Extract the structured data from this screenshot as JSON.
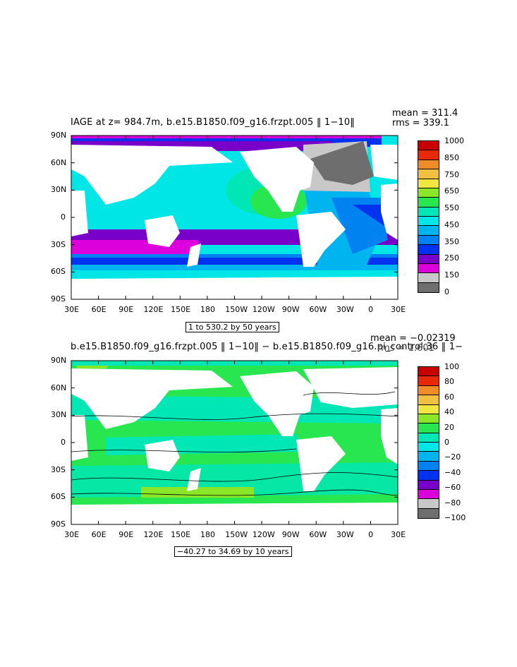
{
  "panels": [
    {
      "title": "IAGE at z= 984.7m, b.e15.B1850.f09_g16.frzpt.005 ‖ 1−10‖",
      "stats": [
        "mean = 311.4",
        "rms = 339.1"
      ],
      "range_label": "1 to 530.2 by 50 years",
      "colorbar": {
        "labels": [
          "1000",
          "850",
          "750",
          "650",
          "550",
          "450",
          "350",
          "250",
          "150",
          "0"
        ],
        "colors": [
          "#c80000",
          "#e8280a",
          "#f08c28",
          "#f0c040",
          "#f0e640",
          "#8ce628",
          "#28e650",
          "#00e6b4",
          "#00e6e6",
          "#00b4f0",
          "#0082f0",
          "#0032f0",
          "#7800c8",
          "#dc00dc",
          "#c8c8c8",
          "#6e6e6e"
        ]
      }
    },
    {
      "title": "b.e15.B1850.f09_g16.frzpt.005 ‖ 1−10‖ − b.e15.B1850.f09_g16.pi_control.36 ‖ 1−",
      "stats": [
        "mean = −0.02319",
        "rms = 1.601"
      ],
      "range_label": "−40.27 to 34.69 by 10 years",
      "colorbar": {
        "labels": [
          "100",
          "80",
          "60",
          "40",
          "20",
          "0",
          "−20",
          "−40",
          "−60",
          "−80",
          "−100"
        ],
        "colors": [
          "#c80000",
          "#e8280a",
          "#f08c28",
          "#f0c040",
          "#f0e640",
          "#8ce628",
          "#28e650",
          "#00e6b4",
          "#00e6e6",
          "#00b4f0",
          "#0082f0",
          "#0032f0",
          "#7800c8",
          "#dc00dc",
          "#c8c8c8",
          "#6e6e6e"
        ]
      }
    }
  ],
  "axes": {
    "xticks": [
      "30E",
      "60E",
      "90E",
      "120E",
      "150E",
      "180",
      "150W",
      "120W",
      "90W",
      "60W",
      "30W",
      "0",
      "30E"
    ],
    "yticks": [
      "90N",
      "60N",
      "30N",
      "0",
      "30S",
      "60S",
      "90S"
    ]
  },
  "chart_data": [
    {
      "type": "heatmap",
      "title": "IAGE at z= 984.7m, b.e15.B1850.f09_g16.frzpt.005 ‖ 1−10‖",
      "x_range": [
        30,
        390
      ],
      "y_range": [
        -90,
        90
      ],
      "color_levels": [
        0,
        150,
        250,
        350,
        450,
        550,
        650,
        750,
        850,
        1000
      ],
      "mean": 311.4,
      "rms": 339.1,
      "data_range": [
        1,
        530.2
      ],
      "contour_interval": 50
    },
    {
      "type": "heatmap",
      "title": "b.e15.B1850.f09_g16.frzpt.005 ‖ 1−10‖ − b.e15.B1850.f09_g16.pi_control.36 ‖ 1−",
      "x_range": [
        30,
        390
      ],
      "y_range": [
        -90,
        90
      ],
      "color_levels": [
        -100,
        -80,
        -60,
        -40,
        -20,
        0,
        20,
        40,
        60,
        80,
        100
      ],
      "mean": -0.02319,
      "rms": 1.601,
      "data_range": [
        -40.27,
        34.69
      ],
      "contour_interval": 10
    }
  ]
}
